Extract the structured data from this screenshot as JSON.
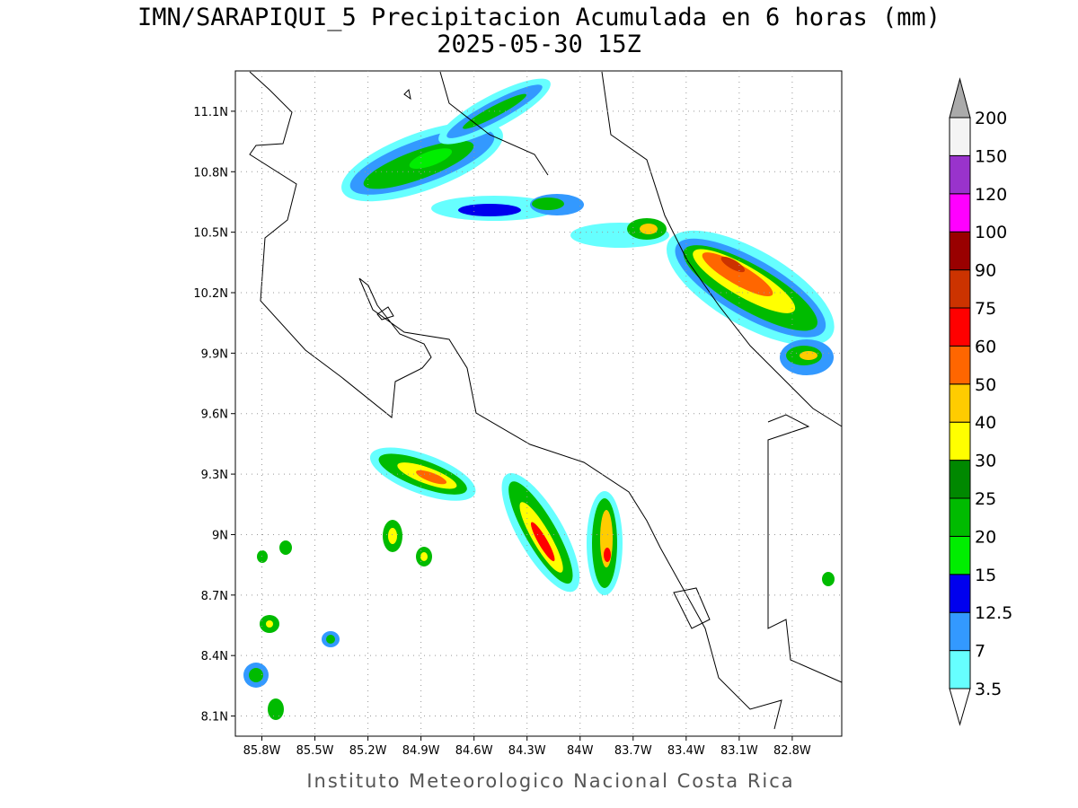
{
  "header": {
    "title": "IMN/SARAPIQUI_5 Precipitacion Acumulada en 6 horas (mm)",
    "subtitle": "2025-05-30 15Z"
  },
  "map": {
    "xlim": [
      -85.95,
      -82.52
    ],
    "ylim": [
      8.0,
      11.3
    ],
    "xticks": [
      {
        "value": -85.8,
        "label": "85.8W"
      },
      {
        "value": -85.5,
        "label": "85.5W"
      },
      {
        "value": -85.2,
        "label": "85.2W"
      },
      {
        "value": -84.9,
        "label": "84.9W"
      },
      {
        "value": -84.6,
        "label": "84.6W"
      },
      {
        "value": -84.3,
        "label": "84.3W"
      },
      {
        "value": -84.0,
        "label": "84W"
      },
      {
        "value": -83.7,
        "label": "83.7W"
      },
      {
        "value": -83.4,
        "label": "83.4W"
      },
      {
        "value": -83.1,
        "label": "83.1W"
      },
      {
        "value": -82.8,
        "label": "82.8W"
      }
    ],
    "yticks": [
      {
        "value": 8.1,
        "label": "8.1N"
      },
      {
        "value": 8.4,
        "label": "8.4N"
      },
      {
        "value": 8.7,
        "label": "8.7N"
      },
      {
        "value": 9.0,
        "label": "9N"
      },
      {
        "value": 9.3,
        "label": "9.3N"
      },
      {
        "value": 9.6,
        "label": "9.6N"
      },
      {
        "value": 9.9,
        "label": "9.9N"
      },
      {
        "value": 10.2,
        "label": "10.2N"
      },
      {
        "value": 10.5,
        "label": "10.5N"
      },
      {
        "value": 10.8,
        "label": "10.8N"
      },
      {
        "value": 11.1,
        "label": "11.1N"
      }
    ]
  },
  "colorbar": {
    "labels": [
      3.5,
      7,
      12.5,
      15,
      20,
      25,
      30,
      40,
      50,
      60,
      75,
      90,
      100,
      120,
      150,
      200
    ],
    "colors": [
      "#ffffff",
      "#66ffff",
      "#3399ff",
      "#0000ee",
      "#00ee00",
      "#00bb00",
      "#008800",
      "#ffff00",
      "#ffcc00",
      "#ff6600",
      "#ff0000",
      "#cc3300",
      "#990000",
      "#ff00ff",
      "#9933cc",
      "#f4f4f4",
      "#aaaaaa"
    ]
  },
  "footer": "Instituto Meteorologico Nacional Costa Rica"
}
